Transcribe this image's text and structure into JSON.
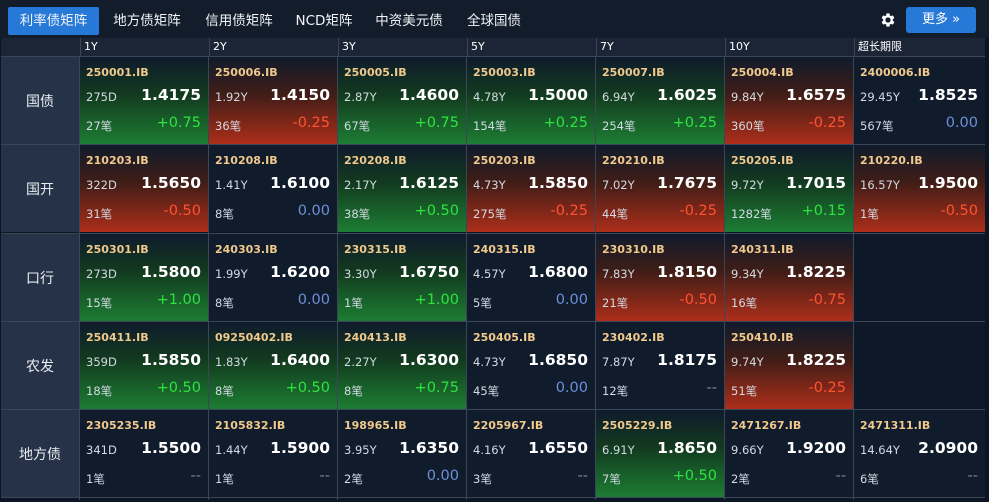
{
  "tabs": [
    {
      "label": "利率债矩阵"
    },
    {
      "label": "地方债矩阵"
    },
    {
      "label": "信用债矩阵"
    },
    {
      "label": "NCD矩阵"
    },
    {
      "label": "中资美元债"
    },
    {
      "label": "全球国债"
    }
  ],
  "more_label": "更多 »",
  "columns": [
    "1Y",
    "2Y",
    "3Y",
    "5Y",
    "7Y",
    "10Y",
    "超长期限"
  ],
  "colors": {
    "accent": "#2779d8",
    "up": "#2ee33f",
    "down": "#ff5232",
    "flat": "#6c91d8",
    "code": "#f0c98c"
  },
  "rows": [
    {
      "label": "国债",
      "cells": [
        {
          "code": "250001.IB",
          "term": "275D",
          "rate": "1.4175",
          "count": "27笔",
          "change": "+0.75",
          "trend": "up"
        },
        {
          "code": "250006.IB",
          "term": "1.92Y",
          "rate": "1.4150",
          "count": "36笔",
          "change": "-0.25",
          "trend": "down"
        },
        {
          "code": "250005.IB",
          "term": "2.87Y",
          "rate": "1.4600",
          "count": "67笔",
          "change": "+0.75",
          "trend": "up"
        },
        {
          "code": "250003.IB",
          "term": "4.78Y",
          "rate": "1.5000",
          "count": "154笔",
          "change": "+0.25",
          "trend": "up"
        },
        {
          "code": "250007.IB",
          "term": "6.94Y",
          "rate": "1.6025",
          "count": "254笔",
          "change": "+0.25",
          "trend": "up"
        },
        {
          "code": "250004.IB",
          "term": "9.84Y",
          "rate": "1.6575",
          "count": "360笔",
          "change": "-0.25",
          "trend": "down"
        },
        {
          "code": "2400006.IB",
          "term": "29.45Y",
          "rate": "1.8525",
          "count": "567笔",
          "change": "0.00",
          "trend": "flat"
        }
      ]
    },
    {
      "label": "国开",
      "cells": [
        {
          "code": "210203.IB",
          "term": "322D",
          "rate": "1.5650",
          "count": "31笔",
          "change": "-0.50",
          "trend": "down"
        },
        {
          "code": "210208.IB",
          "term": "1.41Y",
          "rate": "1.6100",
          "count": "8笔",
          "change": "0.00",
          "trend": "flat"
        },
        {
          "code": "220208.IB",
          "term": "2.17Y",
          "rate": "1.6125",
          "count": "38笔",
          "change": "+0.50",
          "trend": "up"
        },
        {
          "code": "250203.IB",
          "term": "4.73Y",
          "rate": "1.5850",
          "count": "275笔",
          "change": "-0.25",
          "trend": "down"
        },
        {
          "code": "220210.IB",
          "term": "7.02Y",
          "rate": "1.7675",
          "count": "44笔",
          "change": "-0.25",
          "trend": "down"
        },
        {
          "code": "250205.IB",
          "term": "9.72Y",
          "rate": "1.7015",
          "count": "1282笔",
          "change": "+0.15",
          "trend": "up"
        },
        {
          "code": "210220.IB",
          "term": "16.57Y",
          "rate": "1.9500",
          "count": "1笔",
          "change": "-0.50",
          "trend": "down"
        }
      ]
    },
    {
      "label": "口行",
      "cells": [
        {
          "code": "250301.IB",
          "term": "273D",
          "rate": "1.5800",
          "count": "15笔",
          "change": "+1.00",
          "trend": "up"
        },
        {
          "code": "240303.IB",
          "term": "1.99Y",
          "rate": "1.6200",
          "count": "8笔",
          "change": "0.00",
          "trend": "flat"
        },
        {
          "code": "230315.IB",
          "term": "3.30Y",
          "rate": "1.6750",
          "count": "1笔",
          "change": "+1.00",
          "trend": "up"
        },
        {
          "code": "240315.IB",
          "term": "4.57Y",
          "rate": "1.6800",
          "count": "5笔",
          "change": "0.00",
          "trend": "flat"
        },
        {
          "code": "230310.IB",
          "term": "7.83Y",
          "rate": "1.8150",
          "count": "21笔",
          "change": "-0.50",
          "trend": "down"
        },
        {
          "code": "240311.IB",
          "term": "9.34Y",
          "rate": "1.8225",
          "count": "16笔",
          "change": "-0.75",
          "trend": "down"
        },
        null
      ]
    },
    {
      "label": "农发",
      "cells": [
        {
          "code": "250411.IB",
          "term": "359D",
          "rate": "1.5850",
          "count": "18笔",
          "change": "+0.50",
          "trend": "up"
        },
        {
          "code": "09250402.IB",
          "term": "1.83Y",
          "rate": "1.6400",
          "count": "8笔",
          "change": "+0.50",
          "trend": "up"
        },
        {
          "code": "240413.IB",
          "term": "2.27Y",
          "rate": "1.6300",
          "count": "8笔",
          "change": "+0.75",
          "trend": "up"
        },
        {
          "code": "250405.IB",
          "term": "4.73Y",
          "rate": "1.6850",
          "count": "45笔",
          "change": "0.00",
          "trend": "flat"
        },
        {
          "code": "230402.IB",
          "term": "7.87Y",
          "rate": "1.8175",
          "count": "12笔",
          "change": "--",
          "trend": "none"
        },
        {
          "code": "250410.IB",
          "term": "9.74Y",
          "rate": "1.8225",
          "count": "51笔",
          "change": "-0.25",
          "trend": "down"
        },
        null
      ]
    },
    {
      "label": "地方债",
      "cells": [
        {
          "code": "2305235.IB",
          "term": "341D",
          "rate": "1.5500",
          "count": "1笔",
          "change": "--",
          "trend": "none"
        },
        {
          "code": "2105832.IB",
          "term": "1.44Y",
          "rate": "1.5900",
          "count": "1笔",
          "change": "--",
          "trend": "none"
        },
        {
          "code": "198965.IB",
          "term": "3.95Y",
          "rate": "1.6350",
          "count": "2笔",
          "change": "0.00",
          "trend": "flat"
        },
        {
          "code": "2205967.IB",
          "term": "4.16Y",
          "rate": "1.6550",
          "count": "3笔",
          "change": "--",
          "trend": "none"
        },
        {
          "code": "2505229.IB",
          "term": "6.91Y",
          "rate": "1.8650",
          "count": "7笔",
          "change": "+0.50",
          "trend": "up"
        },
        {
          "code": "2471267.IB",
          "term": "9.66Y",
          "rate": "1.9200",
          "count": "2笔",
          "change": "--",
          "trend": "none"
        },
        {
          "code": "2471311.IB",
          "term": "14.64Y",
          "rate": "2.0900",
          "count": "6笔",
          "change": "--",
          "trend": "none"
        }
      ]
    }
  ]
}
